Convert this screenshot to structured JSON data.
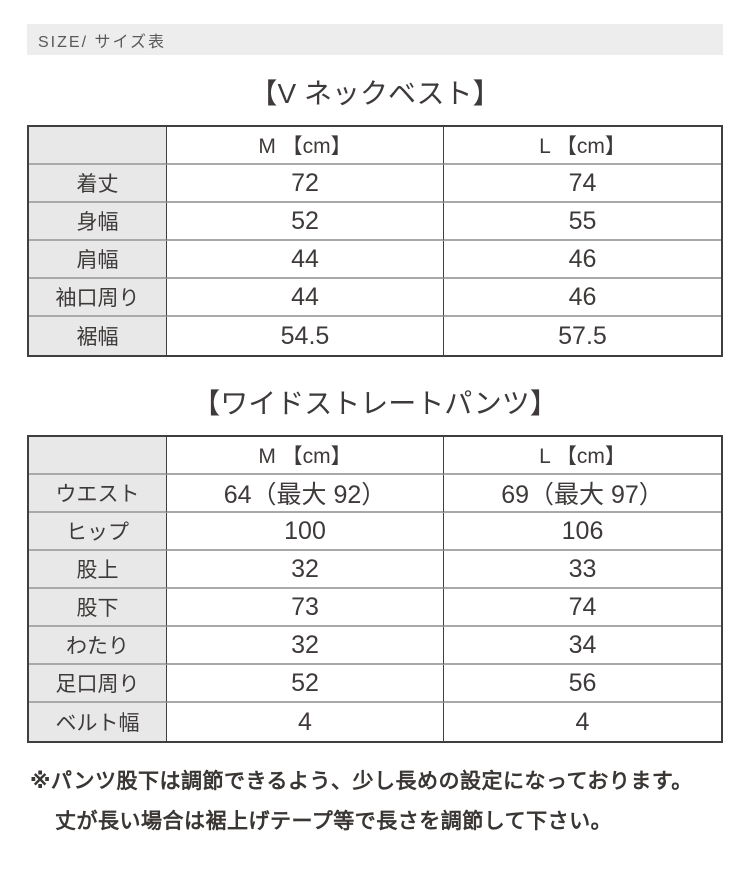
{
  "header": {
    "label": "SIZE/ サイズ表"
  },
  "tables": [
    {
      "title": "【V ネックベスト】",
      "columns": [
        "",
        "M 【cm】",
        "L 【cm】"
      ],
      "rows": [
        {
          "label": "着丈",
          "m": "72",
          "l": "74"
        },
        {
          "label": "身幅",
          "m": "52",
          "l": "55"
        },
        {
          "label": "肩幅",
          "m": "44",
          "l": "46"
        },
        {
          "label": "袖口周り",
          "m": "44",
          "l": "46"
        },
        {
          "label": "裾幅",
          "m": "54.5",
          "l": "57.5"
        }
      ]
    },
    {
      "title": "【ワイドストレートパンツ】",
      "columns": [
        "",
        "M 【cm】",
        "L 【cm】"
      ],
      "rows": [
        {
          "label": "ウエスト",
          "m": "64（最大 92）",
          "l": "69（最大 97）"
        },
        {
          "label": "ヒップ",
          "m": "100",
          "l": "106"
        },
        {
          "label": "股上",
          "m": "32",
          "l": "33"
        },
        {
          "label": "股下",
          "m": "73",
          "l": "74"
        },
        {
          "label": "わたり",
          "m": "32",
          "l": "34"
        },
        {
          "label": "足口周り",
          "m": "52",
          "l": "56"
        },
        {
          "label": "ベルト幅",
          "m": "4",
          "l": "4"
        }
      ]
    }
  ],
  "note": {
    "line1": "※パンツ股下は調節できるよう、少し長めの設定になっております。",
    "line2": "丈が長い場合は裾上げテープ等で長さを調節して下さい。"
  },
  "colors": {
    "bar_bg": "#ededed",
    "label_cell_bg": "#e8e8e8",
    "border_dark": "#3f3f3f",
    "border_light": "#a9a9a9",
    "text": "#3e3a39"
  }
}
